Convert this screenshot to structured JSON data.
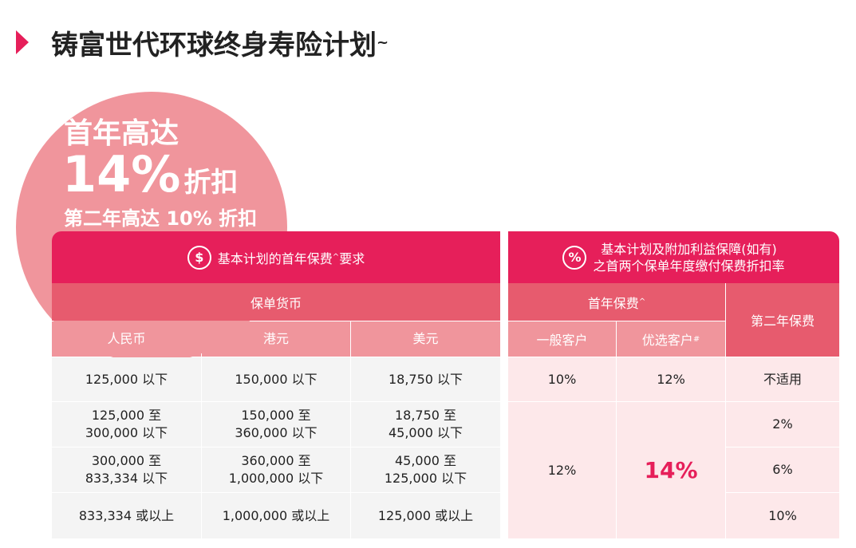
{
  "header": {
    "title": "铸富世代环球终身寿险计划",
    "title_mark": "~"
  },
  "badge": {
    "line1": "首年高达",
    "big": "14%",
    "big_suffix": "折扣",
    "line3": "第二年高达 10% 折扣"
  },
  "left_table": {
    "icon": "$",
    "title": "基本计划的首年保费",
    "title_mark": "^",
    "title_after": "要求",
    "group": "保单货币",
    "columns": [
      "人民币",
      "港元",
      "美元"
    ],
    "rows": [
      [
        "125,000 以下",
        "150,000 以下",
        "18,750 以下"
      ],
      [
        "125,000 至\n300,000 以下",
        "150,000 至\n360,000 以下",
        "18,750 至\n45,000 以下"
      ],
      [
        "300,000 至\n833,334 以下",
        "360,000 至\n1,000,000 以下",
        "45,000 至\n125,000 以下"
      ],
      [
        "833,334 或以上",
        "1,000,000 或以上",
        "125,000 或以上"
      ]
    ]
  },
  "right_table": {
    "icon": "%",
    "title_line1": "基本计划及附加利益保障(如有)",
    "title_line2": "之首两个保单年度缴付保费折扣率",
    "group": "首年保费",
    "group_mark": "^",
    "second_year": "第二年保费",
    "columns": [
      "一般客户",
      "优选客户"
    ],
    "column_mark": "#",
    "row1": [
      "10%",
      "12%",
      "不适用"
    ],
    "general_rest": "12%",
    "preferred_rest": "14%",
    "second_rest": [
      "2%",
      "6%",
      "10%"
    ]
  }
}
